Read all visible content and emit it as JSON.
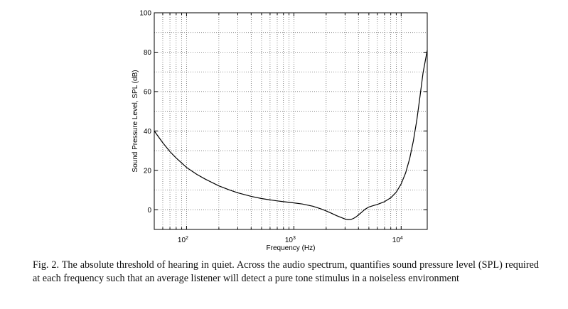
{
  "chart_data": {
    "type": "line",
    "title": "",
    "xlabel": "Frequency (Hz)",
    "ylabel": "Sound Pressure Level, SPL (dB)",
    "xscale": "log",
    "xlim": [
      50,
      17500
    ],
    "ylim": [
      -10,
      100
    ],
    "grid": true,
    "x_ticks": [
      {
        "value": 100,
        "base": "10",
        "exp": "2"
      },
      {
        "value": 1000,
        "base": "10",
        "exp": "3"
      },
      {
        "value": 10000,
        "base": "10",
        "exp": "4"
      }
    ],
    "y_ticks": [
      "0",
      "20",
      "40",
      "60",
      "80",
      "100"
    ],
    "series": [
      {
        "x": [
          50,
          60,
          70,
          80,
          100,
          125,
          150,
          200,
          250,
          300,
          400,
          500,
          600,
          700,
          800,
          1000,
          1200,
          1500,
          1800,
          2000,
          2200,
          2500,
          2800,
          3000,
          3200,
          3400,
          3600,
          3800,
          4000,
          4300,
          4600,
          5000,
          5500,
          6000,
          7000,
          8000,
          9000,
          10000,
          11000,
          12000,
          13000,
          14000,
          15000,
          16000,
          17500
        ],
        "y": [
          40.0,
          34.0,
          29.5,
          26.3,
          21.5,
          17.9,
          15.5,
          12.1,
          10.1,
          8.6,
          6.8,
          5.7,
          5.0,
          4.5,
          4.1,
          3.5,
          2.9,
          1.8,
          0.4,
          -0.6,
          -1.6,
          -3.0,
          -4.1,
          -4.7,
          -5.0,
          -4.9,
          -4.4,
          -3.6,
          -2.6,
          -1.2,
          0.2,
          1.4,
          2.1,
          2.7,
          4.1,
          6.1,
          8.9,
          13.1,
          18.7,
          26.0,
          35.0,
          45.7,
          57.8,
          69.5,
          81.0
        ]
      }
    ]
  },
  "caption": {
    "text": "Fig. 2.  The absolute threshold of hearing in quiet.  Across the audio spectrum, quantifies sound pressure level (SPL) required at each frequency such that an average listener will detect a pure tone stimulus in a noiseless environment"
  }
}
